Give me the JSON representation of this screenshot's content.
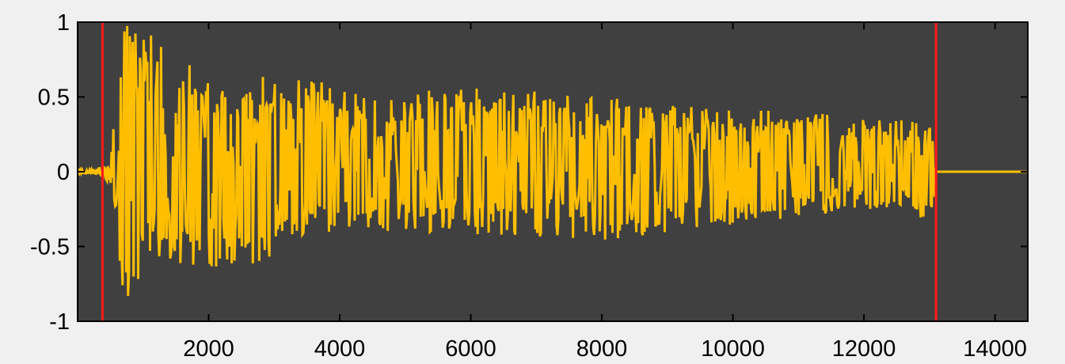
{
  "chart_data": {
    "type": "line",
    "title": "",
    "xlabel": "",
    "ylabel": "",
    "xlim": [
      0,
      14500
    ],
    "ylim": [
      -1,
      1
    ],
    "xticks": [
      2000,
      4000,
      6000,
      8000,
      10000,
      12000,
      14000
    ],
    "xtick_labels": [
      "2000",
      "4000",
      "6000",
      "8000",
      "10000",
      "12000",
      "14000"
    ],
    "yticks": [
      1,
      0.5,
      0,
      -0.5,
      -1
    ],
    "ytick_labels": [
      "1",
      "0.5",
      "0",
      "-0.5",
      "-1"
    ],
    "grid": false,
    "legend": "none",
    "colors": {
      "plot_background": "#404040",
      "figure_background": "#f0f0f0",
      "waveform": "#ffbf00",
      "markers": "#ff1a1a",
      "axes": "#000000"
    },
    "series": [
      {
        "color": "#ffbf00",
        "envelope": {
          "x": [
            0,
            300,
            380,
            500,
            600,
            700,
            800,
            900,
            1100,
            1400,
            1800,
            2200,
            2800,
            3400,
            4000,
            5000,
            6000,
            7000,
            8000,
            9000,
            10000,
            11000,
            12000,
            12700,
            13050,
            13100,
            14500
          ],
          "upper": [
            0.01,
            0.02,
            0.03,
            0.06,
            0.85,
            0.95,
            1.0,
            1.0,
            0.95,
            0.82,
            0.72,
            0.62,
            0.65,
            0.62,
            0.58,
            0.56,
            0.56,
            0.54,
            0.5,
            0.46,
            0.42,
            0.4,
            0.38,
            0.35,
            0.3,
            0.0,
            0.0
          ],
          "lower": [
            -0.01,
            -0.02,
            -0.04,
            -0.08,
            -0.6,
            -0.93,
            -0.86,
            -0.8,
            -0.6,
            -0.58,
            -0.66,
            -0.64,
            -0.62,
            -0.44,
            -0.4,
            -0.4,
            -0.42,
            -0.44,
            -0.46,
            -0.44,
            -0.36,
            -0.3,
            -0.26,
            -0.24,
            -0.38,
            0.0,
            0.0
          ]
        }
      }
    ],
    "vertical_lines": [
      {
        "x": 380,
        "color": "#ff1a1a"
      },
      {
        "x": 13100,
        "color": "#ff1a1a"
      }
    ]
  }
}
